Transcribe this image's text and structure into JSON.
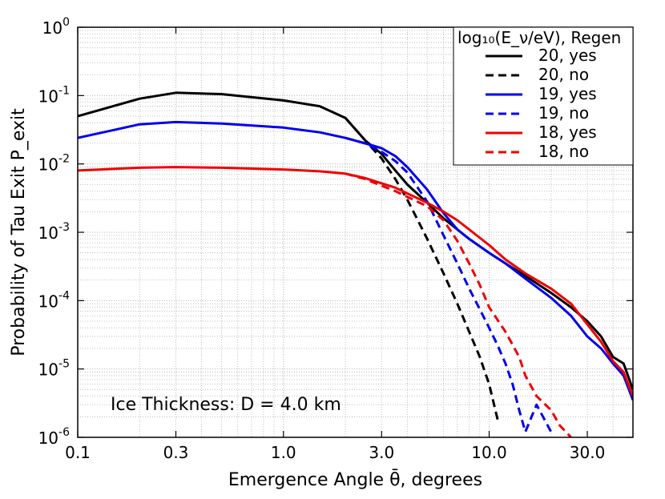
{
  "chart_data": {
    "type": "line",
    "title": "",
    "xlabel": "Emergence Angle θ̄, degrees",
    "ylabel": "Probability of Tau Exit P_exit",
    "xscale": "log",
    "yscale": "log",
    "xlim": [
      0.1,
      50
    ],
    "ylim": [
      1e-06,
      1
    ],
    "grid": true,
    "x_ticks": [
      {
        "value": 0.1,
        "label": "0.1"
      },
      {
        "value": 0.3,
        "label": "0.3"
      },
      {
        "value": 1.0,
        "label": "1.0"
      },
      {
        "value": 3.0,
        "label": "3.0"
      },
      {
        "value": 10.0,
        "label": "10.0"
      },
      {
        "value": 30.0,
        "label": "30.0"
      }
    ],
    "y_ticks": [
      {
        "value": 1e-06,
        "base": "10",
        "exp": "-6"
      },
      {
        "value": 1e-05,
        "base": "10",
        "exp": "-5"
      },
      {
        "value": 0.0001,
        "base": "10",
        "exp": "-4"
      },
      {
        "value": 0.001,
        "base": "10",
        "exp": "-3"
      },
      {
        "value": 0.01,
        "base": "10",
        "exp": "-2"
      },
      {
        "value": 0.1,
        "base": "10",
        "exp": "-1"
      },
      {
        "value": 1,
        "base": "10",
        "exp": "0"
      }
    ],
    "legend": {
      "title": "log₁₀(E_ν/eV), Regen",
      "placement": "top-right"
    },
    "annotation": "Ice Thickness: D = 4.0 km",
    "series": [
      {
        "name": "20, yes",
        "color": "#000000",
        "dashed": false,
        "x": [
          0.1,
          0.2,
          0.3,
          0.5,
          1.0,
          1.5,
          2.0,
          2.5,
          3.0,
          3.5,
          4.0,
          5.0,
          6.0,
          7.0,
          8.0,
          10.0,
          12.0,
          15.0,
          20.0,
          25.0,
          30.0,
          35.0,
          40.0,
          45.0,
          50.0
        ],
        "y": [
          0.05,
          0.09,
          0.11,
          0.105,
          0.085,
          0.07,
          0.047,
          0.022,
          0.014,
          0.008,
          0.005,
          0.0027,
          0.0016,
          0.0011,
          0.0008,
          0.0005,
          0.00035,
          0.00023,
          0.00013,
          8e-05,
          5e-05,
          3e-05,
          1.5e-05,
          1.2e-05,
          5e-06
        ]
      },
      {
        "name": "20, no",
        "color": "#000000",
        "dashed": true,
        "x": [
          2.0,
          2.5,
          3.0,
          3.5,
          4.0,
          4.5,
          5.0,
          6.0,
          7.0,
          8.0,
          9.0,
          10.0,
          11.0
        ],
        "y": [
          0.047,
          0.022,
          0.012,
          0.006,
          0.003,
          0.0015,
          0.0008,
          0.00025,
          9e-05,
          3.5e-05,
          1.5e-05,
          6e-06,
          1.8e-06
        ]
      },
      {
        "name": "19, yes",
        "color": "#0000ee",
        "dashed": false,
        "x": [
          0.1,
          0.2,
          0.3,
          0.5,
          1.0,
          1.5,
          2.0,
          2.5,
          3.0,
          3.5,
          4.0,
          5.0,
          6.0,
          7.0,
          8.0,
          10.0,
          12.0,
          15.0,
          20.0,
          25.0,
          30.0,
          35.0,
          40.0,
          45.0,
          50.0
        ],
        "y": [
          0.024,
          0.038,
          0.041,
          0.039,
          0.034,
          0.029,
          0.024,
          0.02,
          0.017,
          0.013,
          0.009,
          0.0042,
          0.0019,
          0.0011,
          0.0008,
          0.0005,
          0.00035,
          0.00021,
          0.00011,
          6e-05,
          3e-05,
          2e-05,
          1.2e-05,
          8e-06,
          3.5e-06
        ]
      },
      {
        "name": "19, no",
        "color": "#0000ee",
        "dashed": true,
        "x": [
          2.0,
          2.5,
          3.0,
          3.5,
          4.0,
          5.0,
          6.0,
          7.0,
          8.0,
          9.0,
          10.0,
          11.0,
          12.0,
          13.0,
          14.0,
          15.0,
          17.0,
          20.0
        ],
        "y": [
          0.024,
          0.02,
          0.015,
          0.011,
          0.0075,
          0.0028,
          0.0009,
          0.00035,
          0.00015,
          7.5e-05,
          4e-05,
          2.2e-05,
          1.2e-05,
          6e-06,
          2.5e-06,
          1.2e-06,
          3e-06,
          1.2e-06
        ]
      },
      {
        "name": "18, yes",
        "color": "#ee0000",
        "dashed": false,
        "x": [
          0.1,
          0.2,
          0.3,
          0.5,
          1.0,
          1.5,
          2.0,
          2.5,
          3.0,
          3.5,
          4.0,
          5.0,
          6.0,
          7.0,
          8.0,
          10.0,
          12.0,
          15.0,
          20.0,
          25.0,
          30.0,
          35.0,
          40.0,
          45.0,
          50.0
        ],
        "y": [
          0.008,
          0.0088,
          0.009,
          0.0088,
          0.0083,
          0.0078,
          0.0072,
          0.0062,
          0.0052,
          0.0045,
          0.0037,
          0.0027,
          0.002,
          0.0015,
          0.0011,
          0.00065,
          0.0004,
          0.00025,
          0.00015,
          9e-05,
          4.5e-05,
          2.5e-05,
          1.3e-05,
          9e-06,
          4e-06
        ]
      },
      {
        "name": "18, no",
        "color": "#ee0000",
        "dashed": true,
        "x": [
          2.0,
          2.5,
          3.0,
          3.5,
          4.0,
          5.0,
          6.0,
          7.0,
          8.0,
          9.0,
          10.0,
          12.0,
          14.0,
          15.0,
          17.0,
          20.0,
          22.0,
          25.0
        ],
        "y": [
          0.0072,
          0.006,
          0.0048,
          0.004,
          0.0033,
          0.0024,
          0.0015,
          0.00075,
          0.00035,
          0.00017,
          8e-05,
          3.5e-05,
          1.5e-05,
          8e-06,
          4e-06,
          2.5e-06,
          1.5e-06,
          1e-06
        ]
      }
    ]
  }
}
